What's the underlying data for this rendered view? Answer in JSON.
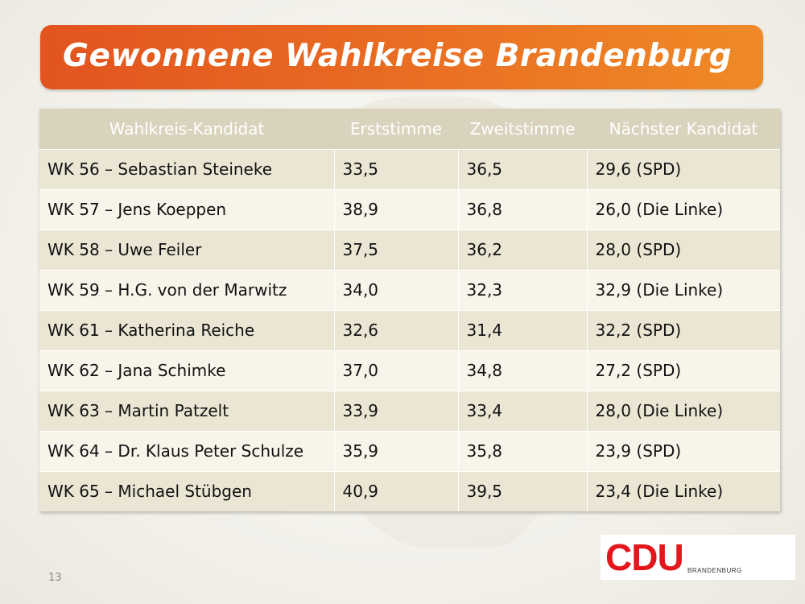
{
  "title": "Gewonnene Wahlkreise Brandenburg",
  "table": {
    "headers": [
      "Wahlkreis-Kandidat",
      "Erststimme",
      "Zweitstimme",
      "Nächster Kandidat"
    ],
    "rows": [
      [
        "WK 56 – Sebastian Steineke",
        "33,5",
        "36,5",
        "29,6 (SPD)"
      ],
      [
        "WK 57 – Jens Koeppen",
        "38,9",
        "36,8",
        "26,0 (Die Linke)"
      ],
      [
        "WK 58 – Uwe Feiler",
        "37,5",
        "36,2",
        "28,0 (SPD)"
      ],
      [
        "WK 59 – H.G. von der Marwitz",
        "34,0",
        "32,3",
        "32,9 (Die Linke)"
      ],
      [
        "WK 61 – Katherina Reiche",
        "32,6",
        "31,4",
        "32,2 (SPD)"
      ],
      [
        "WK 62 – Jana Schimke",
        "37,0",
        "34,8",
        "27,2 (SPD)"
      ],
      [
        "WK 63 – Martin Patzelt",
        "33,9",
        "33,4",
        "28,0 (Die Linke)"
      ],
      [
        "WK 64 – Dr. Klaus Peter Schulze",
        "35,9",
        "35,8",
        "23,9 (SPD)"
      ],
      [
        "WK 65 – Michael Stübgen",
        "40,9",
        "39,5",
        "23,4 (Die Linke)"
      ]
    ]
  },
  "page_number": "13",
  "logo": {
    "name": "CDU",
    "subtitle": "BRANDENBURG",
    "color": "#e3161b"
  },
  "colors": {
    "title_bar_start": "#e3541f",
    "title_bar_end": "#ef8a27",
    "header_bg": "#d9d3bd"
  }
}
